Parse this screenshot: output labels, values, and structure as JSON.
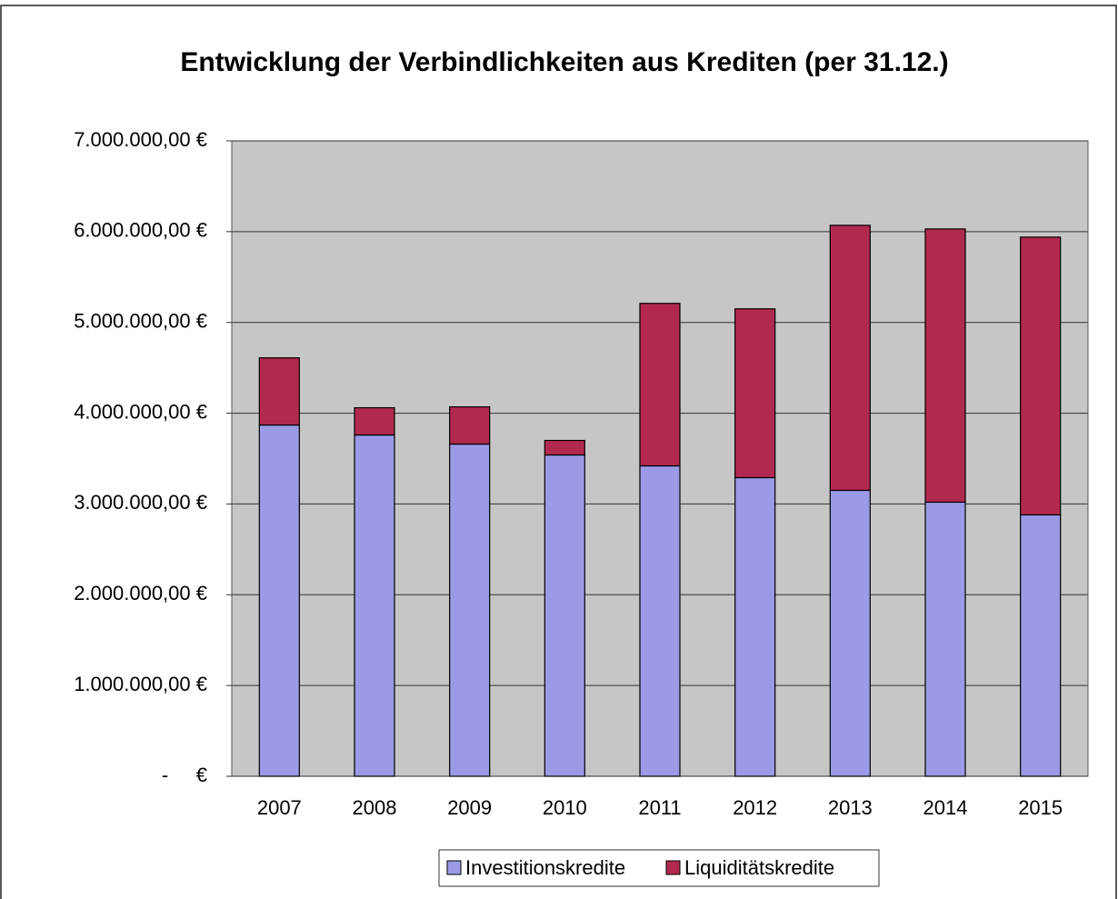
{
  "chart_data": {
    "type": "stacked_bar",
    "title": "Entwicklung der Verbindlichkeiten aus Krediten (per 31.12.)",
    "categories": [
      "2007",
      "2008",
      "2009",
      "2010",
      "2011",
      "2012",
      "2013",
      "2014",
      "2015"
    ],
    "series": [
      {
        "name": "Investitionskredite",
        "color": "#9a9ae6",
        "values": [
          3870000,
          3760000,
          3660000,
          3540000,
          3420000,
          3290000,
          3150000,
          3020000,
          2880000
        ]
      },
      {
        "name": "Liquiditätskredite",
        "color": "#b2294f",
        "values": [
          740000,
          300000,
          410000,
          160000,
          1790000,
          1860000,
          2920000,
          3010000,
          3060000
        ]
      }
    ],
    "ylim": [
      0,
      7000000
    ],
    "yticks": [
      {
        "value": 0,
        "label": "-     €"
      },
      {
        "value": 1000000,
        "label": "1.000.000,00 €"
      },
      {
        "value": 2000000,
        "label": "2.000.000,00 €"
      },
      {
        "value": 3000000,
        "label": "3.000.000,00 €"
      },
      {
        "value": 4000000,
        "label": "4.000.000,00 €"
      },
      {
        "value": 5000000,
        "label": "5.000.000,00 €"
      },
      {
        "value": 6000000,
        "label": "6.000.000,00 €"
      },
      {
        "value": 7000000,
        "label": "7.000.000,00 €"
      }
    ],
    "grid": true,
    "legend": "bottom"
  }
}
